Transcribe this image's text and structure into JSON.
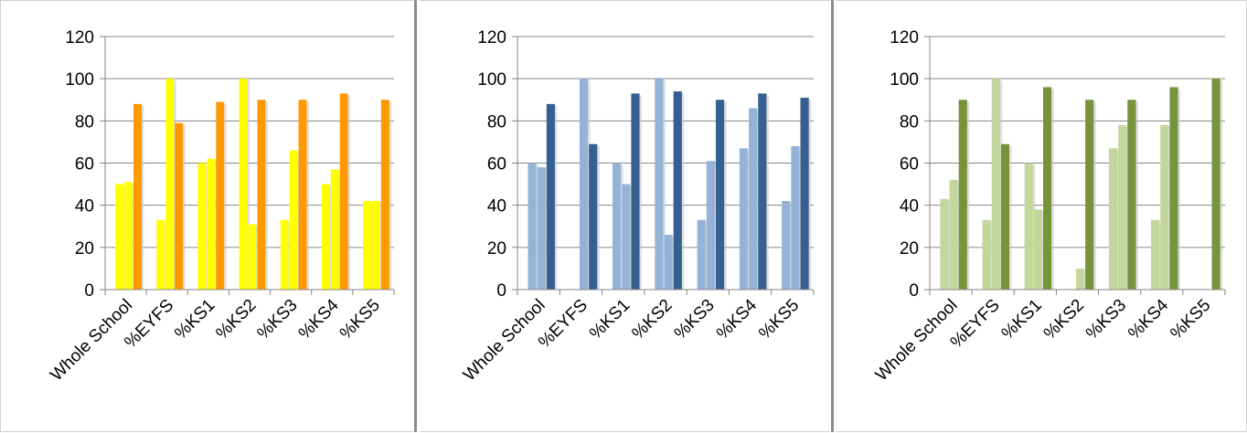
{
  "colors": {
    "yellow_light": "#ffff00",
    "orange": "#ff9900",
    "blue_light": "#95b3d7",
    "blue_dark": "#366092",
    "green_light": "#c3d69b",
    "green_dark": "#77933c",
    "gridline": "#868686",
    "separator": "#8c8c8c"
  },
  "chart_data": [
    {
      "type": "bar",
      "title": "",
      "xlabel": "",
      "ylabel": "",
      "ylim": [
        0,
        120
      ],
      "yticks": [
        "0",
        "20",
        "40",
        "60",
        "80",
        "100",
        "120"
      ],
      "grid": true,
      "legend": "none",
      "categories": [
        "Whole School",
        "%EYFS",
        "%KS1",
        "%KS2",
        "%KS3",
        "%KS4",
        "%KS5"
      ],
      "series": [
        {
          "color": "#ffff00",
          "values": [
            50,
            33,
            60,
            100,
            33,
            50,
            42
          ]
        },
        {
          "color": "#ffff00",
          "values": [
            51,
            100,
            62,
            31,
            66,
            57,
            42
          ]
        },
        {
          "color": "#ff9900",
          "values": [
            88,
            79,
            89,
            90,
            90,
            93,
            90
          ]
        }
      ]
    },
    {
      "type": "bar",
      "title": "",
      "xlabel": "",
      "ylabel": "",
      "ylim": [
        0,
        120
      ],
      "yticks": [
        "0",
        "20",
        "40",
        "60",
        "80",
        "100",
        "120"
      ],
      "grid": true,
      "legend": "none",
      "categories": [
        "Whole School",
        "%EYFS",
        "%KS1",
        "%KS2",
        "%KS3",
        "%KS4",
        "%KS5"
      ],
      "series": [
        {
          "color": "#95b3d7",
          "values": [
            60,
            0,
            60,
            100,
            33,
            67,
            42
          ]
        },
        {
          "color": "#95b3d7",
          "values": [
            58,
            100,
            50,
            26,
            61,
            86,
            68
          ]
        },
        {
          "color": "#366092",
          "values": [
            88,
            69,
            93,
            94,
            90,
            93,
            91
          ]
        }
      ]
    },
    {
      "type": "bar",
      "title": "",
      "xlabel": "",
      "ylabel": "",
      "ylim": [
        0,
        120
      ],
      "yticks": [
        "0",
        "20",
        "40",
        "60",
        "80",
        "100",
        "120"
      ],
      "grid": true,
      "legend": "none",
      "categories": [
        "Whole School",
        "%EYFS",
        "%KS1",
        "%KS2",
        "%KS3",
        "%KS4",
        "%KS5"
      ],
      "series": [
        {
          "color": "#c3d69b",
          "values": [
            43,
            33,
            60,
            0,
            67,
            33,
            0
          ]
        },
        {
          "color": "#c3d69b",
          "values": [
            52,
            100,
            38,
            10,
            78,
            78,
            0
          ]
        },
        {
          "color": "#77933c",
          "values": [
            90,
            69,
            96,
            90,
            90,
            96,
            100
          ]
        }
      ]
    }
  ]
}
